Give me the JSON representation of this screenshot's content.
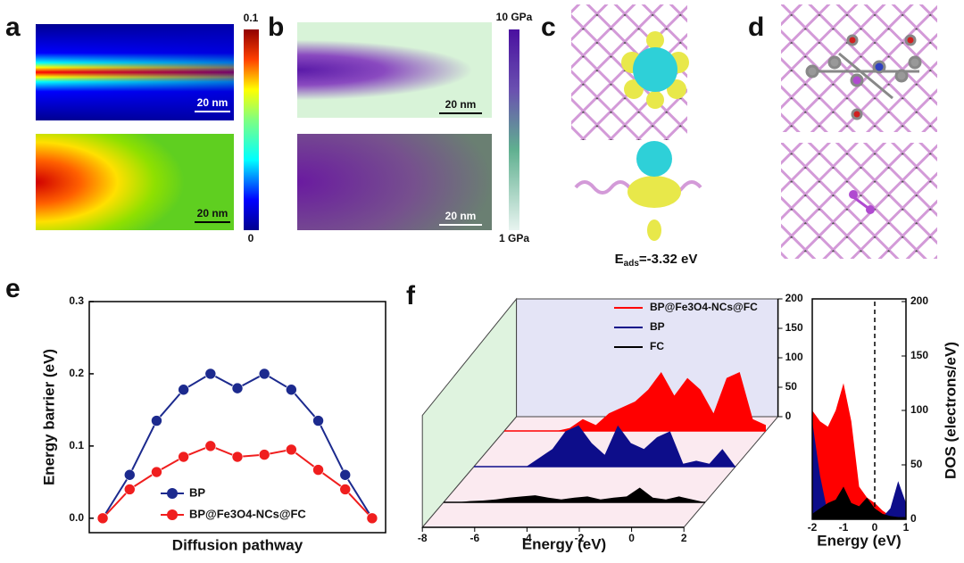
{
  "panel_labels": [
    "a",
    "b",
    "c",
    "d",
    "e",
    "f"
  ],
  "panel_a": {
    "scale_bars": [
      "20 nm",
      "20 nm"
    ],
    "colorbar_max": 0.1,
    "colorbar_min": 0
  },
  "panel_b": {
    "scale_bars": [
      "20 nm",
      "20 nm"
    ],
    "colorbar_max": "10 GPa",
    "colorbar_min": "1 GPa"
  },
  "panel_c": {
    "energy_symbol": "E",
    "energy_subscript": "ads",
    "energy_value": "=-3.32 eV"
  },
  "chart_data": [
    {
      "type": "line",
      "x_label": "Diffusion pathway",
      "y_label": "Energy barrier (eV)",
      "categories": [
        null,
        null,
        null,
        null,
        null,
        null,
        null,
        null,
        null,
        null,
        null
      ],
      "ylim": [
        -0.02,
        0.3
      ],
      "yticks": [
        {
          "value": 0,
          "label": "0.0"
        },
        {
          "value": 0.1,
          "label": "0.1"
        },
        {
          "value": 0.2,
          "label": "0.2"
        },
        {
          "value": 0.3,
          "label": "0.3"
        }
      ],
      "legend": "lower center",
      "series": [
        {
          "name": "BP",
          "color": "#1c2a8e",
          "values": [
            0,
            0.06,
            0.135,
            0.178,
            0.2,
            0.18,
            0.2,
            0.178,
            0.135,
            0.06,
            0
          ]
        },
        {
          "name": "BP@Fe3O4-NCs@FC",
          "color": "#f01e1e",
          "values": [
            0,
            0.04,
            0.064,
            0.085,
            0.1,
            0.085,
            0.088,
            0.095,
            0.067,
            0.04,
            0
          ]
        }
      ]
    },
    {
      "type": "waterfall",
      "x_label": "Energy (eV)",
      "x": [
        -8,
        -7.5,
        -7,
        -6.5,
        -6,
        -5.5,
        -5,
        -4.5,
        -4,
        -3.5,
        -3,
        -2.5,
        -2,
        -1.5,
        -1,
        -0.5,
        0,
        0.5,
        1,
        1.5,
        2
      ],
      "xlim": [
        -8,
        2
      ],
      "xticks": [
        -8,
        -6,
        -4,
        -2,
        0,
        2
      ],
      "ylim": [
        0,
        200
      ],
      "yticks": [
        0,
        50,
        100,
        150,
        200
      ],
      "series": [
        {
          "name": "BP@Fe3O4-NCs@FC",
          "color": "#ff0000",
          "values": [
            0,
            0,
            0,
            0,
            0,
            5,
            20,
            10,
            30,
            40,
            50,
            70,
            100,
            60,
            90,
            70,
            30,
            90,
            100,
            20,
            10
          ]
        },
        {
          "name": "BP",
          "color": "#0d0d8a",
          "values": [
            0,
            0,
            0,
            0,
            0,
            15,
            30,
            60,
            70,
            40,
            20,
            70,
            40,
            30,
            50,
            60,
            5,
            10,
            5,
            30,
            0
          ]
        },
        {
          "name": "FC",
          "color": "#000000",
          "values": [
            0,
            0,
            2,
            3,
            5,
            8,
            10,
            12,
            8,
            5,
            8,
            10,
            5,
            8,
            10,
            25,
            8,
            5,
            10,
            5,
            0
          ]
        }
      ]
    },
    {
      "type": "area",
      "x_label": "Energy (eV)",
      "y_label": "DOS (electrons/eV)",
      "x": [
        -2,
        -1.75,
        -1.5,
        -1.25,
        -1,
        -0.75,
        -0.5,
        -0.25,
        0,
        0.25,
        0.5,
        0.75,
        1
      ],
      "xlim": [
        -2,
        1
      ],
      "xticks": [
        -2,
        -1,
        0,
        1
      ],
      "ylim": [
        0,
        200
      ],
      "yticks": [
        0,
        50,
        100,
        150,
        200
      ],
      "vlines": [
        0
      ],
      "series": [
        {
          "color": "#ff0000",
          "values": [
            100,
            90,
            85,
            100,
            125,
            90,
            30,
            20,
            15,
            8,
            3,
            2,
            0
          ]
        },
        {
          "color": "#0d0d8a",
          "values": [
            90,
            40,
            5,
            0,
            0,
            0,
            0,
            0,
            0,
            2,
            10,
            35,
            15
          ]
        },
        {
          "color": "#000000",
          "values": [
            5,
            10,
            15,
            18,
            30,
            15,
            12,
            20,
            10,
            5,
            3,
            2,
            2
          ]
        }
      ]
    }
  ]
}
